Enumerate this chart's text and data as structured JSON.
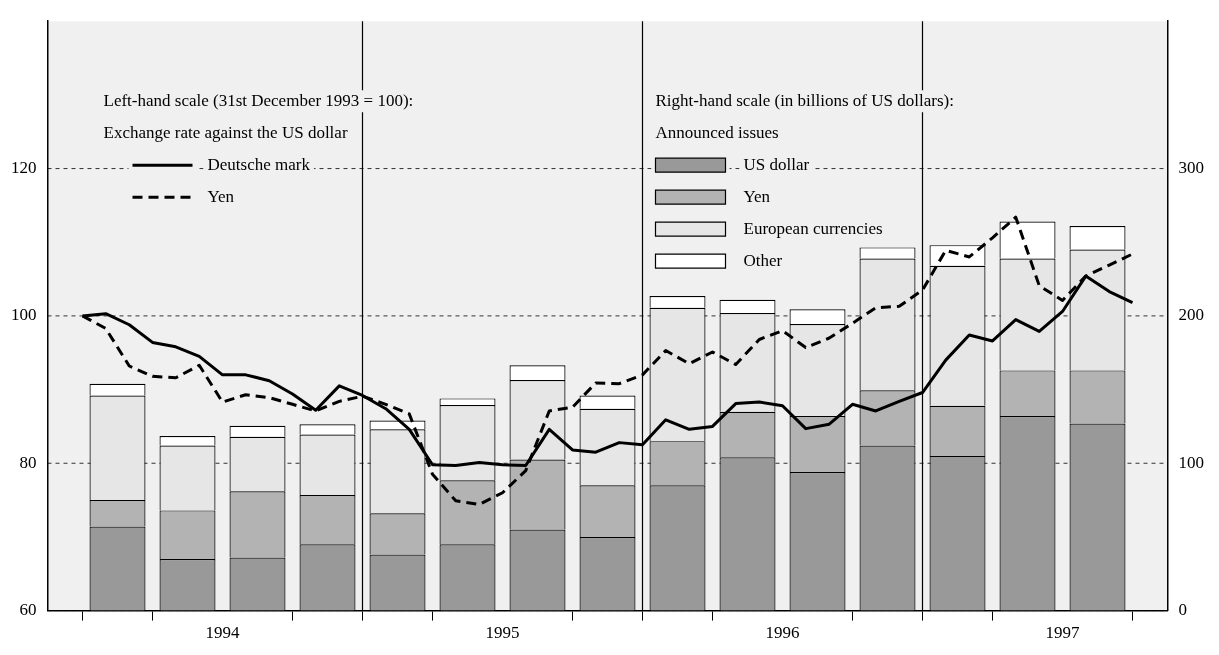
{
  "chart_data": {
    "type": "bar",
    "stacked": true,
    "ylabel": "Left-hand scale (31st December 1993 = 100):",
    "y2label": "Right-hand scale (in billions of US dollars):",
    "annotations": [
      "Exchange rate against the US dollar",
      "Announced issues"
    ],
    "x": [
      1994.125,
      1994.375,
      1994.625,
      1994.875,
      1995.125,
      1995.375,
      1995.625,
      1995.875,
      1996.125,
      1996.375,
      1996.625,
      1996.875,
      1997.125,
      1997.375,
      1997.625
    ],
    "xlim": [
      1993.875,
      1997.875
    ],
    "xticks": [
      {
        "value": 1994,
        "label": null
      },
      {
        "value": 1994.25,
        "label": null
      },
      {
        "value": 1994.5,
        "label": "1994"
      },
      {
        "value": 1994.75,
        "label": null
      },
      {
        "value": 1995,
        "label": null
      },
      {
        "value": 1995.25,
        "label": null
      },
      {
        "value": 1995.5,
        "label": "1995"
      },
      {
        "value": 1995.75,
        "label": null
      },
      {
        "value": 1996,
        "label": null
      },
      {
        "value": 1996.25,
        "label": null
      },
      {
        "value": 1996.5,
        "label": "1996"
      },
      {
        "value": 1996.75,
        "label": null
      },
      {
        "value": 1997,
        "label": null
      },
      {
        "value": 1997.25,
        "label": null
      },
      {
        "value": 1997.5,
        "label": "1997"
      },
      {
        "value": 1997.75,
        "label": null
      }
    ],
    "ylim": [
      60,
      140
    ],
    "yticks": [
      60,
      80,
      100,
      120
    ],
    "y2lim": [
      0,
      400
    ],
    "y2ticks": [
      0,
      100,
      200,
      300
    ],
    "grid": "y",
    "legend": "top",
    "marker": "none",
    "ref_lines": [
      {
        "axis": "x",
        "value": 1995,
        "color": "#000000"
      },
      {
        "axis": "x",
        "value": 1996,
        "color": "#000000"
      },
      {
        "axis": "x",
        "value": 1997,
        "color": "#000000"
      }
    ],
    "series": [
      {
        "name": "Deutsche mark",
        "type": "line",
        "line_style": "solid",
        "color": "#000000",
        "x": [
          1994,
          1994.083,
          1994.167,
          1994.25,
          1994.333,
          1994.417,
          1994.5,
          1994.583,
          1994.667,
          1994.75,
          1994.833,
          1994.917,
          1995,
          1995.083,
          1995.167,
          1995.25,
          1995.333,
          1995.417,
          1995.5,
          1995.583,
          1995.667,
          1995.75,
          1995.833,
          1995.917,
          1996,
          1996.083,
          1996.167,
          1996.25,
          1996.333,
          1996.417,
          1996.5,
          1996.583,
          1996.667,
          1996.75,
          1996.833,
          1996.917,
          1997,
          1997.083,
          1997.167,
          1997.25,
          1997.333,
          1997.417,
          1997.5,
          1997.583,
          1997.667,
          1997.75
        ],
        "values": [
          100,
          100.3,
          98.8,
          96.4,
          95.8,
          94.5,
          92,
          92,
          91.2,
          89.4,
          87.2,
          90.5,
          89.2,
          87.4,
          84.6,
          79.8,
          79.7,
          80.1,
          79.8,
          79.7,
          84.6,
          81.8,
          81.5,
          82.8,
          82.5,
          85.9,
          84.6,
          85,
          88.1,
          88.3,
          87.8,
          84.7,
          85.3,
          88,
          87.1,
          88.4,
          89.6,
          94,
          97.4,
          96.6,
          99.5,
          97.9,
          100.6,
          105.4,
          103.3,
          101.8
        ]
      },
      {
        "name": "Yen",
        "type": "line",
        "line_style": "dashed",
        "color": "#000000",
        "x": [
          1994,
          1994.083,
          1994.167,
          1994.25,
          1994.333,
          1994.417,
          1994.5,
          1994.583,
          1994.667,
          1994.75,
          1994.833,
          1994.917,
          1995,
          1995.083,
          1995.167,
          1995.25,
          1995.333,
          1995.417,
          1995.5,
          1995.583,
          1995.667,
          1995.75,
          1995.833,
          1995.917,
          1996,
          1996.083,
          1996.167,
          1996.25,
          1996.333,
          1996.417,
          1996.5,
          1996.583,
          1996.667,
          1996.75,
          1996.833,
          1996.917,
          1997,
          1997.083,
          1997.167,
          1997.25,
          1997.333,
          1997.417,
          1997.5,
          1997.583,
          1997.667,
          1997.75
        ],
        "values": [
          100,
          98.3,
          93.2,
          91.8,
          91.6,
          93.3,
          88.3,
          89.3,
          88.9,
          88,
          87.1,
          88.4,
          89.1,
          88,
          86.7,
          78.5,
          74.9,
          74.4,
          76,
          79,
          87.1,
          87.6,
          90.9,
          90.8,
          92,
          95.3,
          93.5,
          95.1,
          93.4,
          96.8,
          98,
          95.7,
          97,
          99,
          101.1,
          101.3,
          103.5,
          108.9,
          108,
          110.6,
          113.4,
          104.1,
          102.1,
          105.4,
          106.9,
          108.4
        ]
      },
      {
        "name": "US dollar",
        "axis": "y2",
        "color": "#999999",
        "values": [
          57,
          35,
          36,
          45,
          38,
          45,
          55,
          50,
          85,
          104,
          94,
          112,
          105,
          132,
          127
        ]
      },
      {
        "name": "Yen",
        "axis": "y2",
        "color": "#b3b3b3",
        "values": [
          18,
          33,
          45,
          33.5,
          28,
          43.5,
          47.5,
          35,
          30,
          31,
          38,
          37.5,
          34,
          31,
          36
        ]
      },
      {
        "name": "European currencies",
        "axis": "y2",
        "color": "#e6e6e6",
        "values": [
          71,
          44,
          37,
          41,
          57,
          51,
          54,
          52,
          90.5,
          67,
          62.5,
          89.5,
          95,
          76,
          82
        ]
      },
      {
        "name": "Other",
        "axis": "y2",
        "color": "#ffffff",
        "values": [
          8,
          6.5,
          7.5,
          7,
          6,
          4.5,
          10,
          9,
          8,
          9,
          10,
          7.5,
          14,
          25,
          16
        ]
      }
    ]
  }
}
